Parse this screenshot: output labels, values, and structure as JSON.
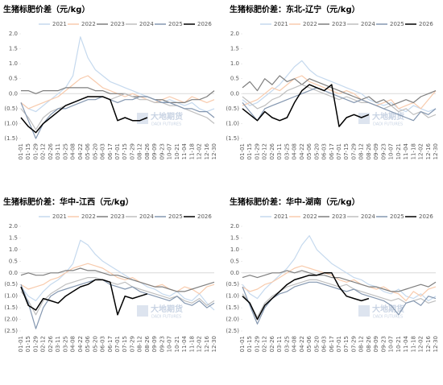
{
  "chart_data": [
    {
      "type": "line",
      "title": "生猪标肥价差（元/kg）",
      "watermark": "大地期货",
      "watermark_en": "DADI FUTURES",
      "categories": [
        "01-01",
        "01-15",
        "01-29",
        "02-12",
        "02-26",
        "03-11",
        "03-25",
        "04-08",
        "04-22",
        "05-06",
        "05-20",
        "06-03",
        "06-17",
        "07-01",
        "07-15",
        "07-29",
        "08-12",
        "08-26",
        "09-09",
        "09-23",
        "10-07",
        "10-21",
        "11-04",
        "11-18",
        "12-02",
        "12-16",
        "12-30"
      ],
      "ylim": [
        -1.5,
        2.0
      ],
      "yticks": [
        {
          "value": 2,
          "label": "2.0"
        },
        {
          "value": 1.5,
          "label": "1.5"
        },
        {
          "value": 1,
          "label": "1.0"
        },
        {
          "value": 0.5,
          "label": "0.5"
        },
        {
          "value": 0,
          "label": "0.0"
        },
        {
          "value": -0.5,
          "label": "(0.5)"
        },
        {
          "value": -1,
          "label": "(1.0)"
        },
        {
          "value": -1.5,
          "label": "(1.5)"
        }
      ],
      "series": [
        {
          "name": "2021",
          "color": "#c5d9ee",
          "values": [
            -0.3,
            -0.5,
            -0.6,
            -0.4,
            -0.2,
            0.0,
            0.2,
            0.6,
            1.9,
            1.2,
            0.8,
            0.6,
            0.4,
            0.3,
            0.2,
            0.1,
            0.0,
            -0.1,
            -0.2,
            -0.3,
            -0.2,
            -0.3,
            -0.4,
            -0.3,
            -0.5,
            -0.6,
            -0.5
          ]
        },
        {
          "name": "2022",
          "color": "#f8cbad",
          "values": [
            -0.3,
            -0.5,
            -0.4,
            -0.3,
            -0.2,
            -0.1,
            0.1,
            0.3,
            0.5,
            0.6,
            0.4,
            0.2,
            0.1,
            0.0,
            -0.1,
            0.0,
            -0.1,
            -0.2,
            -0.3,
            -0.2,
            -0.1,
            -0.2,
            -0.3,
            -0.1,
            -0.2,
            -0.3,
            -0.2
          ]
        },
        {
          "name": "2023",
          "color": "#7f7f7f",
          "values": [
            0.1,
            0.1,
            0.0,
            0.1,
            0.1,
            0.1,
            0.2,
            0.2,
            0.2,
            0.2,
            0.1,
            0.1,
            0.0,
            0.0,
            0.0,
            -0.1,
            -0.1,
            -0.1,
            -0.2,
            -0.2,
            -0.3,
            -0.3,
            -0.3,
            -0.2,
            -0.2,
            -0.1,
            0.1
          ]
        },
        {
          "name": "2024",
          "color": "#bfbfbf",
          "values": [
            -0.5,
            -0.8,
            -1.2,
            -0.8,
            -0.6,
            -0.5,
            -0.4,
            -0.3,
            -0.2,
            -0.1,
            -0.1,
            -0.1,
            -0.2,
            -0.1,
            0.0,
            -0.1,
            -0.2,
            -0.2,
            -0.3,
            -0.3,
            -0.4,
            -0.4,
            -0.5,
            -0.6,
            -0.7,
            -0.8,
            -1.0
          ]
        },
        {
          "name": "2025",
          "color": "#8497b0",
          "values": [
            -0.3,
            -0.9,
            -1.5,
            -1.0,
            -0.7,
            -0.5,
            -0.5,
            -0.4,
            -0.3,
            -0.2,
            -0.2,
            -0.1,
            -0.2,
            -0.3,
            -0.2,
            -0.2,
            -0.1,
            -0.1,
            -0.2,
            -0.3,
            -0.3,
            -0.4,
            -0.5,
            -0.5,
            -0.6,
            -0.6,
            -0.8
          ]
        },
        {
          "name": "2026",
          "color": "#000000",
          "values": [
            -0.8,
            -1.1,
            -1.3,
            -1.0,
            -0.8,
            -0.6,
            -0.4,
            -0.3,
            -0.2,
            -0.1,
            -0.1,
            -0.1,
            -0.2,
            -0.9,
            -0.8,
            -0.9,
            -0.9,
            -0.8,
            null,
            null,
            null,
            null,
            null,
            null,
            null,
            null,
            null
          ]
        }
      ]
    },
    {
      "type": "line",
      "title": "生猪标肥价差：东北-辽宁（元/kg）",
      "watermark": "大地期货",
      "watermark_en": "DADI FUTURES",
      "categories": [
        "01-01",
        "01-15",
        "01-29",
        "02-12",
        "02-26",
        "03-11",
        "03-25",
        "04-08",
        "04-22",
        "05-06",
        "05-20",
        "06-03",
        "06-17",
        "07-01",
        "07-15",
        "07-29",
        "08-12",
        "08-26",
        "09-09",
        "09-23",
        "10-07",
        "10-21",
        "11-04",
        "11-18",
        "12-02",
        "12-16",
        "12-30"
      ],
      "ylim": [
        -1.5,
        2.0
      ],
      "yticks": [
        {
          "value": 2,
          "label": "2.0"
        },
        {
          "value": 1.5,
          "label": "1.5"
        },
        {
          "value": 1,
          "label": "1.0"
        },
        {
          "value": 0.5,
          "label": "0.5"
        },
        {
          "value": 0,
          "label": "0.0"
        },
        {
          "value": -0.5,
          "label": "(0.5)"
        },
        {
          "value": -1,
          "label": "(1.0)"
        },
        {
          "value": -1.5,
          "label": "(1.5)"
        }
      ],
      "series": [
        {
          "name": "2021",
          "color": "#c5d9ee",
          "values": [
            -0.2,
            -0.4,
            -0.3,
            -0.1,
            0.1,
            0.3,
            0.6,
            0.9,
            1.1,
            0.8,
            0.6,
            0.5,
            0.4,
            0.3,
            0.2,
            0.1,
            0.0,
            -0.2,
            -0.3,
            -0.4,
            -0.3,
            -0.5,
            -0.6,
            -0.4,
            -0.5,
            -0.6,
            -0.5
          ]
        },
        {
          "name": "2022",
          "color": "#f8cbad",
          "values": [
            -0.4,
            -0.3,
            -0.2,
            0.0,
            0.2,
            0.1,
            0.3,
            0.5,
            0.6,
            0.4,
            0.3,
            0.2,
            0.1,
            0.0,
            0.1,
            0.0,
            -0.2,
            -0.3,
            -0.4,
            -0.3,
            -0.2,
            -0.5,
            -0.4,
            -0.3,
            -0.5,
            -0.2,
            0.1
          ]
        },
        {
          "name": "2023",
          "color": "#7f7f7f",
          "values": [
            0.2,
            0.4,
            0.1,
            0.5,
            0.3,
            0.6,
            0.4,
            0.5,
            0.3,
            0.5,
            0.4,
            0.3,
            0.2,
            0.1,
            0.0,
            -0.1,
            -0.2,
            -0.1,
            -0.3,
            -0.2,
            -0.4,
            -0.3,
            -0.2,
            -0.3,
            -0.1,
            0.0,
            0.1
          ]
        },
        {
          "name": "2024",
          "color": "#bfbfbf",
          "values": [
            -0.1,
            -0.3,
            -0.5,
            -0.4,
            -0.2,
            -0.1,
            0.1,
            0.2,
            0.3,
            0.2,
            0.1,
            0.0,
            -0.1,
            -0.2,
            -0.1,
            -0.2,
            -0.3,
            -0.3,
            -0.4,
            -0.5,
            -0.4,
            -0.6,
            -0.5,
            -0.7,
            -0.6,
            -0.8,
            -0.7
          ]
        },
        {
          "name": "2025",
          "color": "#8497b0",
          "values": [
            -0.3,
            -0.6,
            -0.9,
            -0.5,
            -0.4,
            -0.3,
            -0.2,
            -0.1,
            0.0,
            0.1,
            0.2,
            0.1,
            0.0,
            -0.1,
            -0.2,
            -0.3,
            -0.2,
            -0.3,
            -0.4,
            -0.5,
            -0.6,
            -0.7,
            -0.8,
            -0.9,
            -0.6,
            -0.7,
            -0.5
          ]
        },
        {
          "name": "2026",
          "color": "#000000",
          "values": [
            -0.5,
            -0.7,
            -0.9,
            -0.6,
            -0.8,
            -0.9,
            -0.8,
            -0.3,
            0.1,
            0.3,
            0.2,
            0.1,
            0.3,
            -1.1,
            -0.8,
            -0.7,
            -0.8,
            -0.7,
            null,
            null,
            null,
            null,
            null,
            null,
            null,
            null,
            null
          ]
        }
      ]
    },
    {
      "type": "line",
      "title": "生猪标肥价差：华中-江西（元/kg）",
      "watermark": "大地期货",
      "watermark_en": "DADI FUTURES",
      "categories": [
        "01-01",
        "01-15",
        "01-29",
        "02-12",
        "02-26",
        "03-11",
        "03-25",
        "04-08",
        "04-22",
        "05-06",
        "05-20",
        "06-03",
        "06-17",
        "07-01",
        "07-15",
        "07-29",
        "08-12",
        "08-26",
        "09-09",
        "09-23",
        "10-07",
        "10-21",
        "11-04",
        "11-18",
        "12-02",
        "12-16",
        "12-30"
      ],
      "ylim": [
        -2.5,
        2.0
      ],
      "yticks": [
        {
          "value": 2,
          "label": "2.0"
        },
        {
          "value": 1.5,
          "label": "1.5"
        },
        {
          "value": 1,
          "label": "1.0"
        },
        {
          "value": 0.5,
          "label": "0.5"
        },
        {
          "value": 0,
          "label": "0.0"
        },
        {
          "value": -0.5,
          "label": "(0.5)"
        },
        {
          "value": -1,
          "label": "(1.0)"
        },
        {
          "value": -1.5,
          "label": "(1.5)"
        },
        {
          "value": -2,
          "label": "(2.0)"
        },
        {
          "value": -2.5,
          "label": "(2.5)"
        }
      ],
      "series": [
        {
          "name": "2021",
          "color": "#c5d9ee",
          "values": [
            -0.6,
            -1.0,
            -1.2,
            -0.8,
            -0.5,
            -0.3,
            0.0,
            0.4,
            1.4,
            1.2,
            0.8,
            0.5,
            0.3,
            0.1,
            -0.1,
            -0.3,
            -0.4,
            -0.6,
            -0.7,
            -0.9,
            -1.0,
            -0.8,
            -1.1,
            -1.2,
            -0.9,
            -1.3,
            -1.6
          ]
        },
        {
          "name": "2022",
          "color": "#f8cbad",
          "values": [
            -0.5,
            -0.7,
            -0.6,
            -0.5,
            -0.3,
            -0.2,
            0.0,
            0.2,
            0.3,
            0.4,
            0.3,
            0.2,
            0.0,
            -0.2,
            -0.3,
            -0.2,
            -0.4,
            -0.5,
            -0.6,
            -0.5,
            -0.7,
            -0.8,
            -0.6,
            -0.7,
            -0.9,
            -0.6,
            -0.5
          ]
        },
        {
          "name": "2023",
          "color": "#7f7f7f",
          "values": [
            -0.1,
            0.0,
            -0.1,
            -0.1,
            0.0,
            0.0,
            0.1,
            0.1,
            0.2,
            0.1,
            0.1,
            0.0,
            -0.1,
            -0.1,
            -0.2,
            -0.3,
            -0.4,
            -0.5,
            -0.6,
            -0.6,
            -0.7,
            -0.8,
            -0.8,
            -0.7,
            -0.6,
            -0.5,
            -0.4
          ]
        },
        {
          "name": "2024",
          "color": "#bfbfbf",
          "values": [
            -0.8,
            -1.2,
            -1.8,
            -1.2,
            -0.9,
            -0.7,
            -0.5,
            -0.4,
            -0.3,
            -0.2,
            -0.2,
            -0.3,
            -0.4,
            -0.5,
            -0.4,
            -0.6,
            -0.7,
            -0.8,
            -0.9,
            -1.0,
            -1.1,
            -1.0,
            -1.2,
            -1.3,
            -1.1,
            -1.4,
            -1.2
          ]
        },
        {
          "name": "2025",
          "color": "#8497b0",
          "values": [
            -0.5,
            -1.3,
            -2.4,
            -1.5,
            -1.0,
            -0.8,
            -0.7,
            -0.6,
            -0.5,
            -0.4,
            -0.3,
            -0.3,
            -0.5,
            -0.6,
            -0.7,
            -0.6,
            -0.8,
            -0.9,
            -1.0,
            -1.1,
            -1.2,
            -1.0,
            -1.3,
            -1.4,
            -1.2,
            -1.5,
            -1.3
          ]
        },
        {
          "name": "2026",
          "color": "#000000",
          "values": [
            -0.6,
            -1.4,
            -1.6,
            -1.1,
            -1.2,
            -1.3,
            -1.0,
            -0.8,
            -0.6,
            -0.5,
            -0.3,
            -0.3,
            -0.4,
            -1.8,
            -1.0,
            -1.1,
            -1.0,
            -0.9,
            null,
            null,
            null,
            null,
            null,
            null,
            null,
            null,
            null
          ]
        }
      ]
    },
    {
      "type": "line",
      "title": "生猪标肥价差：华中-湖南（元/kg）",
      "watermark": "大地期货",
      "watermark_en": "DADI FUTURES",
      "categories": [
        "01-01",
        "01-15",
        "01-29",
        "02-12",
        "02-26",
        "03-11",
        "03-25",
        "04-08",
        "04-22",
        "05-06",
        "05-20",
        "06-03",
        "06-17",
        "07-01",
        "07-15",
        "07-29",
        "08-12",
        "08-26",
        "09-09",
        "09-23",
        "10-07",
        "10-21",
        "11-04",
        "11-18",
        "12-02",
        "12-16",
        "12-30"
      ],
      "ylim": [
        -2.5,
        2.0
      ],
      "yticks": [
        {
          "value": 2,
          "label": "2.0"
        },
        {
          "value": 1.5,
          "label": "1.5"
        },
        {
          "value": 1,
          "label": "1.0"
        },
        {
          "value": 0.5,
          "label": "0.5"
        },
        {
          "value": 0,
          "label": "0.0"
        },
        {
          "value": -0.5,
          "label": "(0.5)"
        },
        {
          "value": -1,
          "label": "(1.0)"
        },
        {
          "value": -1.5,
          "label": "(1.5)"
        },
        {
          "value": -2,
          "label": "(2.0)"
        },
        {
          "value": -2.5,
          "label": "(2.5)"
        }
      ],
      "series": [
        {
          "name": "2021",
          "color": "#c5d9ee",
          "values": [
            -0.5,
            -0.9,
            -1.1,
            -0.7,
            -0.4,
            -0.1,
            0.2,
            0.6,
            1.2,
            1.6,
            1.0,
            0.7,
            0.4,
            0.2,
            0.0,
            -0.2,
            -0.3,
            -0.5,
            -0.6,
            -0.8,
            -0.9,
            -0.7,
            -1.0,
            -1.1,
            -0.9,
            -1.2,
            -1.0
          ]
        },
        {
          "name": "2022",
          "color": "#f8cbad",
          "values": [
            -0.6,
            -0.8,
            -0.7,
            -0.5,
            -0.4,
            -0.2,
            0.0,
            0.2,
            0.3,
            0.2,
            0.1,
            0.0,
            -0.1,
            -0.3,
            -0.4,
            -0.3,
            -0.5,
            -0.6,
            -0.7,
            -0.6,
            -0.8,
            -0.9,
            -1.2,
            -0.8,
            -1.0,
            -0.7,
            -0.6
          ]
        },
        {
          "name": "2023",
          "color": "#7f7f7f",
          "values": [
            -0.2,
            -0.1,
            -0.2,
            -0.1,
            0.0,
            0.0,
            0.1,
            0.0,
            0.1,
            0.0,
            -0.1,
            -0.1,
            -0.2,
            -0.2,
            -0.3,
            -0.4,
            -0.5,
            -0.6,
            -0.6,
            -0.7,
            -0.8,
            -0.8,
            -0.7,
            -0.6,
            -0.5,
            -0.6,
            -0.4
          ]
        },
        {
          "name": "2024",
          "color": "#bfbfbf",
          "values": [
            -0.9,
            -1.3,
            -1.9,
            -1.3,
            -1.0,
            -0.8,
            -0.6,
            -0.5,
            -0.4,
            -0.3,
            -0.3,
            -0.4,
            -0.5,
            -0.6,
            -0.5,
            -0.7,
            -0.8,
            -0.9,
            -1.0,
            -1.1,
            -1.2,
            -1.1,
            -1.3,
            -1.2,
            -1.1,
            -1.3,
            -1.2
          ]
        },
        {
          "name": "2025",
          "color": "#8497b0",
          "values": [
            -0.6,
            -1.4,
            -2.2,
            -1.5,
            -1.1,
            -0.9,
            -0.8,
            -0.6,
            -0.5,
            -0.4,
            -0.4,
            -0.5,
            -0.6,
            -0.7,
            -0.8,
            -0.7,
            -0.9,
            -1.0,
            -1.1,
            -1.2,
            -1.4,
            -1.8,
            -1.3,
            -1.2,
            -1.4,
            -1.0,
            -1.1
          ]
        },
        {
          "name": "2026",
          "color": "#000000",
          "values": [
            -1.0,
            -1.3,
            -2.0,
            -1.4,
            -1.1,
            -0.8,
            -0.5,
            -0.3,
            -0.2,
            -0.1,
            -0.1,
            0.0,
            0.0,
            -0.6,
            -1.0,
            -1.1,
            -1.2,
            -1.1,
            null,
            null,
            null,
            null,
            null,
            null,
            null,
            null,
            null
          ]
        }
      ]
    }
  ]
}
